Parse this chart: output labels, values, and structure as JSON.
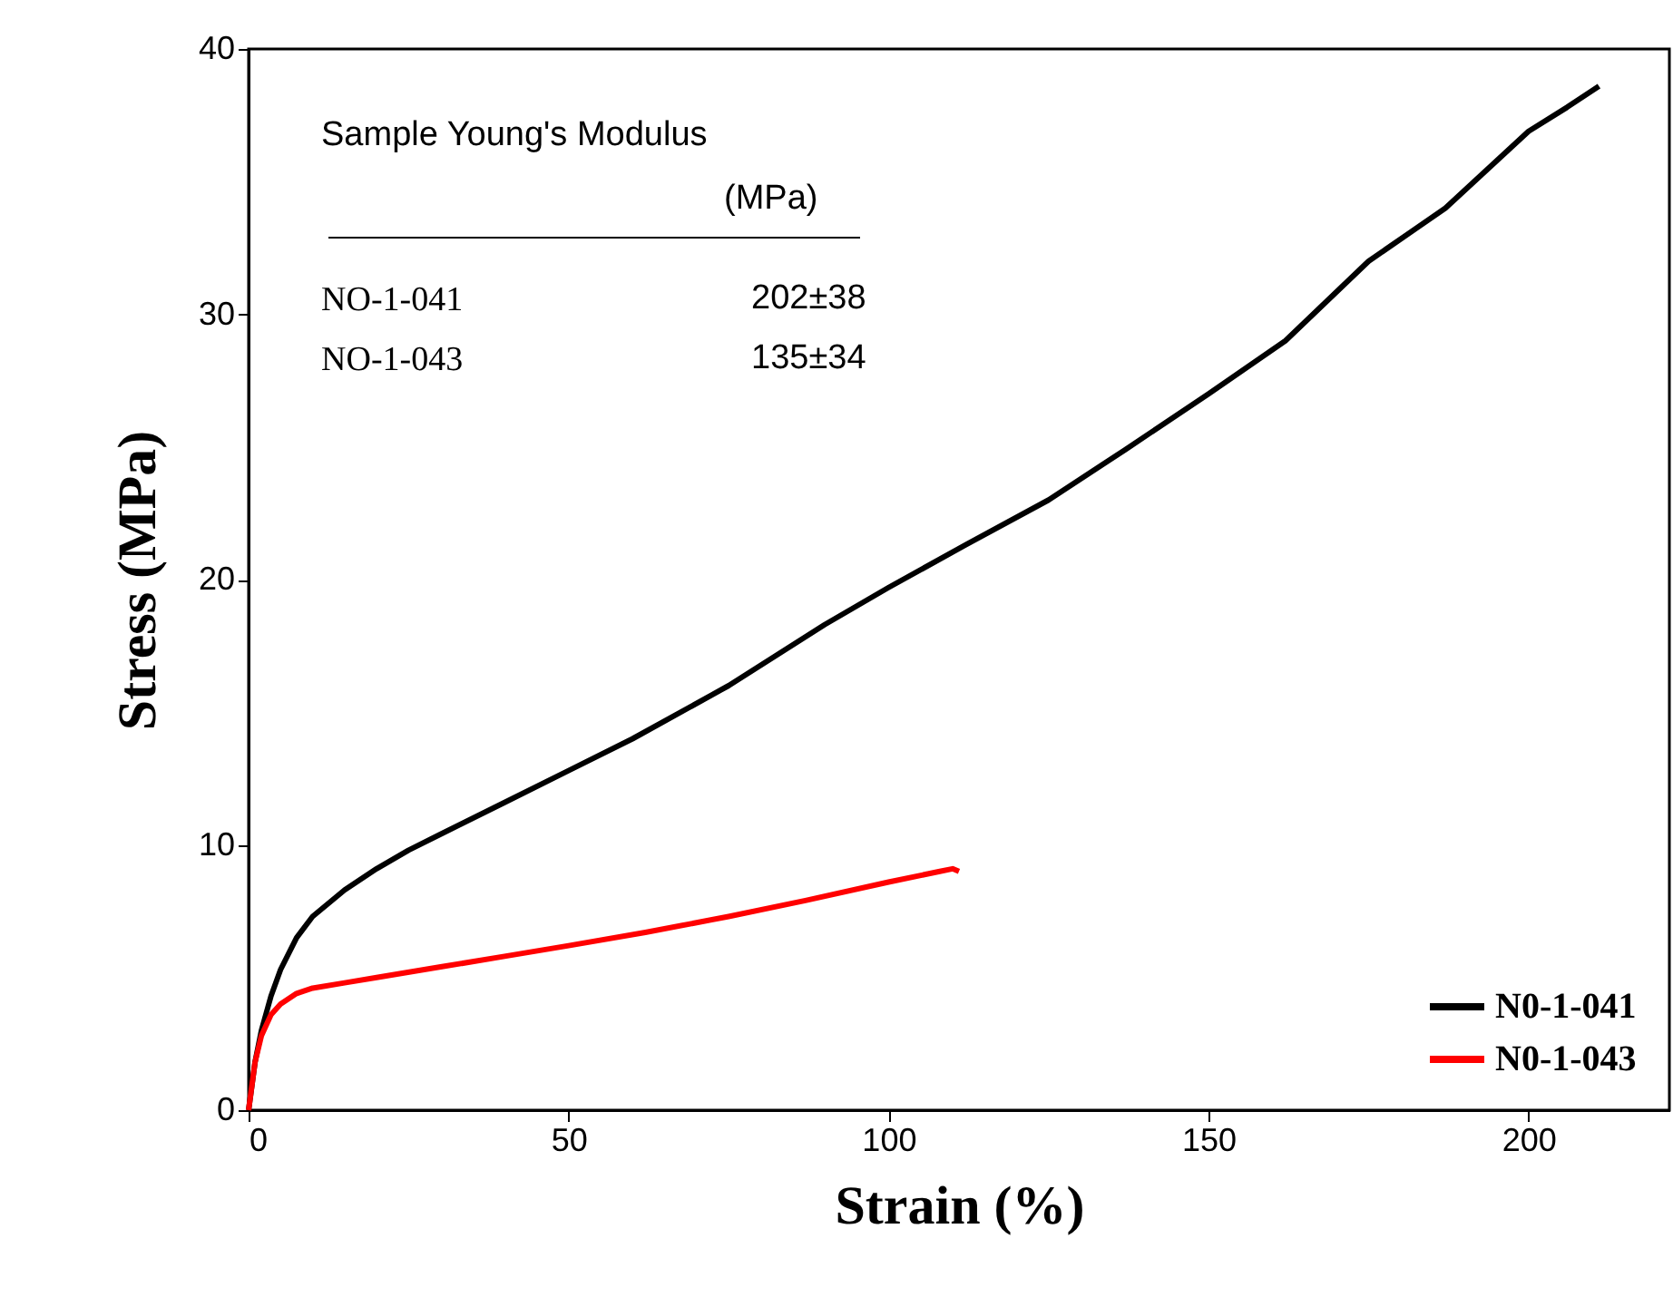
{
  "chart_data": {
    "type": "line",
    "xlabel": "Strain (%)",
    "ylabel": "Stress (MPa)",
    "xlim": [
      0,
      222
    ],
    "ylim": [
      0,
      40
    ],
    "xticks": [
      0,
      50,
      100,
      150,
      200
    ],
    "yticks": [
      0,
      10,
      20,
      30,
      40
    ],
    "grid": false,
    "legend": "bottom right",
    "line_style": "solid",
    "marker": "none",
    "annotations": [
      "Sample Young's Modulus",
      "(MPa)",
      "NO-1-041",
      "202±38",
      "NO-1-043",
      "135±34"
    ],
    "series": [
      {
        "name": "N0-1-041",
        "color": "#000000",
        "x": [
          0,
          1,
          2,
          3.5,
          5,
          7.5,
          10,
          15,
          20,
          25,
          30,
          40,
          50,
          60,
          75,
          90,
          100,
          112,
          125,
          137,
          150,
          162,
          175,
          187,
          200,
          206,
          211
        ],
        "values": [
          0,
          1.8,
          3,
          4.3,
          5.3,
          6.5,
          7.3,
          8.3,
          9.1,
          9.8,
          10.4,
          11.6,
          12.8,
          14,
          16,
          18.3,
          19.7,
          21.3,
          23,
          24.9,
          27,
          29,
          32,
          34,
          36.9,
          37.8,
          38.6
        ]
      },
      {
        "name": "N0-1-043",
        "color": "#ff0000",
        "x": [
          0,
          1,
          2,
          3.5,
          5,
          7.5,
          10,
          15,
          20,
          30,
          40,
          50,
          62,
          75,
          87,
          100,
          108,
          110,
          111
        ],
        "values": [
          0,
          1.8,
          2.8,
          3.6,
          4,
          4.4,
          4.6,
          4.8,
          5,
          5.4,
          5.8,
          6.2,
          6.7,
          7.3,
          7.9,
          8.6,
          9.0,
          9.1,
          9.0
        ]
      }
    ]
  }
}
